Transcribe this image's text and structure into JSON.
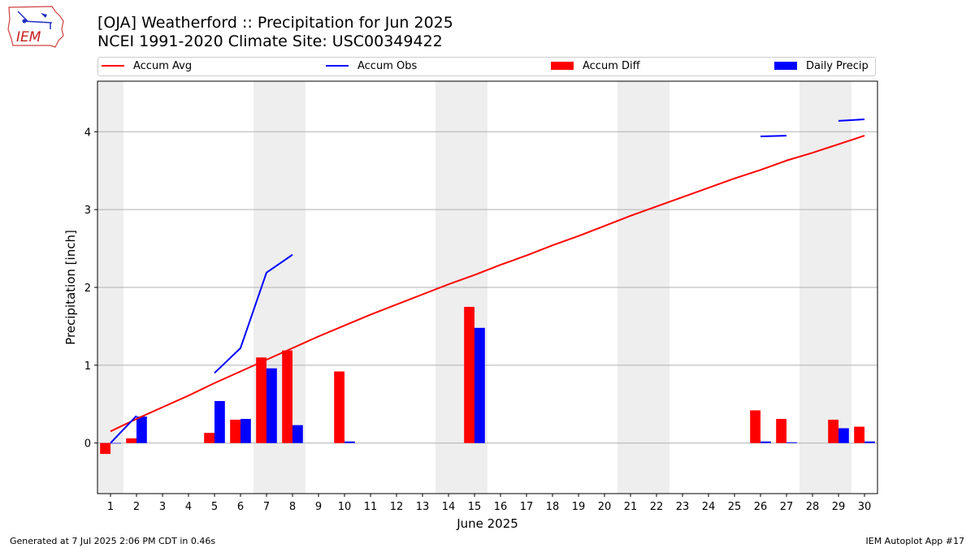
{
  "header": {
    "logo_text": "IEM",
    "title_line1": "[OJA] Weatherford :: Precipitation for Jun 2025",
    "title_line2": "NCEI 1991-2020 Climate Site: USC00349422"
  },
  "legend": {
    "accum_avg": "Accum Avg",
    "accum_obs": "Accum Obs",
    "accum_diff": "Accum Diff",
    "daily_precip": "Daily Precip"
  },
  "footer": {
    "left": "Generated at 7 Jul 2025 2:06 PM CDT in 0.46s",
    "right": "IEM Autoplot App #17"
  },
  "colors": {
    "avg": "#ff0000",
    "obs": "#0000ff",
    "diff": "#ff0000",
    "daily": "#0000ff",
    "weekend_shade": "#eeeeee",
    "grid": "#b0b0b0"
  },
  "chart_data": {
    "type": "bar",
    "xlabel": "June 2025",
    "ylabel": "Precipitation [inch]",
    "xlim": [
      0.5,
      30.5
    ],
    "ylim": [
      -0.65,
      4.65
    ],
    "yticks": [
      0,
      1,
      2,
      3,
      4
    ],
    "days": [
      1,
      2,
      3,
      4,
      5,
      6,
      7,
      8,
      9,
      10,
      11,
      12,
      13,
      14,
      15,
      16,
      17,
      18,
      19,
      20,
      21,
      22,
      23,
      24,
      25,
      26,
      27,
      28,
      29,
      30
    ],
    "weekend_shading": [
      [
        0.5,
        1.5
      ],
      [
        6.5,
        8.5
      ],
      [
        13.5,
        15.5
      ],
      [
        20.5,
        22.5
      ],
      [
        27.5,
        29.5
      ]
    ],
    "series": [
      {
        "name": "Accum Avg",
        "kind": "line",
        "values": [
          0.15,
          0.31,
          0.46,
          0.61,
          0.77,
          0.92,
          1.07,
          1.22,
          1.37,
          1.51,
          1.65,
          1.78,
          1.91,
          2.04,
          2.16,
          2.29,
          2.41,
          2.54,
          2.66,
          2.79,
          2.92,
          3.04,
          3.16,
          3.28,
          3.4,
          3.51,
          3.63,
          3.73,
          3.84,
          3.95
        ]
      },
      {
        "name": "Accum Obs",
        "kind": "line",
        "values": [
          0.0,
          0.35,
          null,
          null,
          0.9,
          1.22,
          2.19,
          2.42,
          null,
          null,
          null,
          null,
          null,
          null,
          null,
          null,
          null,
          null,
          null,
          null,
          null,
          null,
          null,
          null,
          null,
          3.94,
          3.95,
          null,
          4.14,
          4.16
        ]
      },
      {
        "name": "Accum Diff",
        "kind": "bar",
        "values": [
          -0.14,
          0.06,
          null,
          null,
          0.13,
          0.3,
          1.1,
          1.19,
          null,
          0.92,
          null,
          null,
          null,
          null,
          1.75,
          null,
          null,
          null,
          null,
          null,
          null,
          null,
          null,
          null,
          null,
          0.42,
          0.31,
          null,
          0.3,
          0.21
        ]
      },
      {
        "name": "Daily Precip",
        "kind": "bar",
        "values": [
          0.0,
          0.34,
          null,
          null,
          0.54,
          0.31,
          0.96,
          0.23,
          null,
          0.02,
          null,
          null,
          null,
          null,
          1.48,
          null,
          null,
          null,
          null,
          null,
          null,
          null,
          null,
          null,
          null,
          0.02,
          0.01,
          null,
          0.19,
          0.02
        ]
      }
    ]
  }
}
